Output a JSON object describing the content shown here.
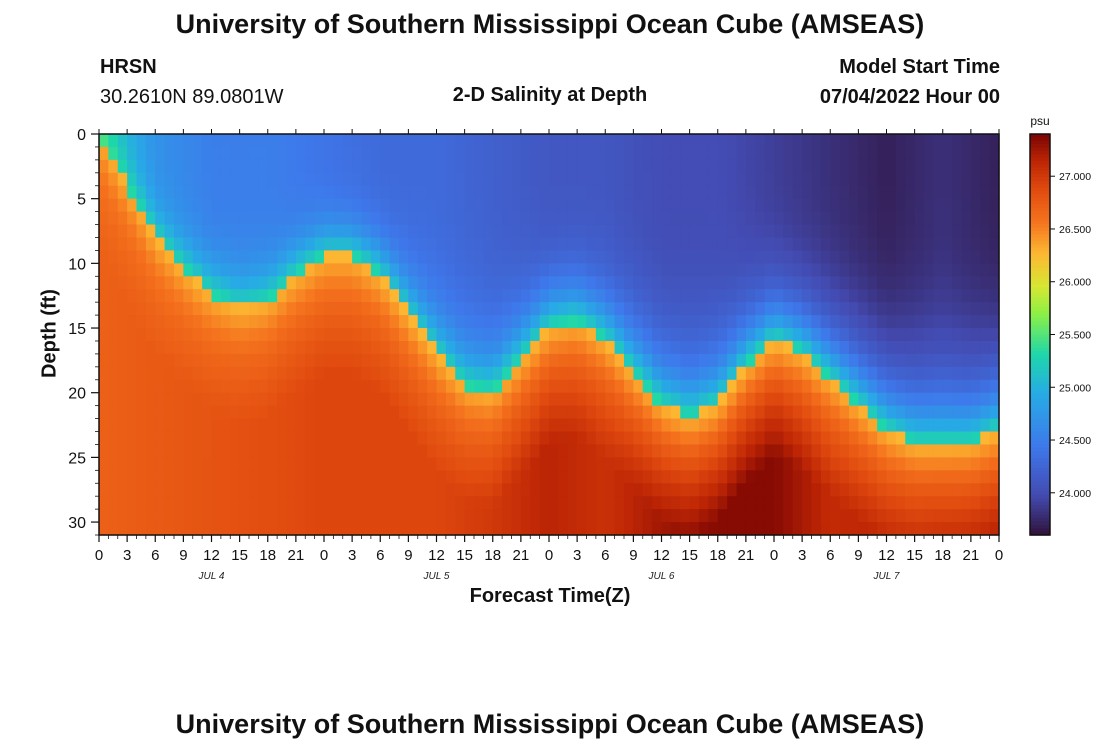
{
  "header": {
    "title": "University of Southern Mississippi Ocean Cube (AMSEAS)",
    "station": "HRSN",
    "coords": "30.2610N  89.0801W",
    "plot_title": "2-D Salinity at Depth",
    "model_start_label": "Model Start Time",
    "model_start_value": "07/04/2022 Hour 00"
  },
  "footer": {
    "title": "University of Southern Mississippi Ocean Cube (AMSEAS)"
  },
  "chart_data": {
    "type": "heatmap",
    "title": "2-D Salinity at Depth",
    "xlabel": "Forecast Time(Z)",
    "ylabel": "Depth (ft)",
    "x_unit": "hours from model start",
    "xlim": [
      0,
      96
    ],
    "ylim": [
      31,
      0
    ],
    "x_ticks": [
      0,
      3,
      6,
      9,
      12,
      15,
      18,
      21,
      24,
      27,
      30,
      33,
      36,
      39,
      42,
      45,
      48,
      51,
      54,
      57,
      60,
      63,
      66,
      69,
      72,
      75,
      78,
      81,
      84,
      87,
      90,
      93,
      96
    ],
    "x_tick_labels": [
      "0",
      "3",
      "6",
      "9",
      "12",
      "15",
      "18",
      "21",
      "0",
      "3",
      "6",
      "9",
      "12",
      "15",
      "18",
      "21",
      "0",
      "3",
      "6",
      "9",
      "12",
      "15",
      "18",
      "21",
      "0",
      "3",
      "6",
      "9",
      "12",
      "15",
      "18",
      "21",
      "0"
    ],
    "y_ticks": [
      0,
      5,
      10,
      15,
      20,
      25,
      30
    ],
    "y_tick_labels": [
      "0",
      "5",
      "10",
      "15",
      "20",
      "25",
      "30"
    ],
    "date_labels": [
      {
        "hour": 12,
        "text": "JUL 4"
      },
      {
        "hour": 36,
        "text": "JUL 5"
      },
      {
        "hour": 60,
        "text": "JUL 6"
      },
      {
        "hour": 84,
        "text": "JUL 7"
      }
    ],
    "colorbar": {
      "unit": "psu",
      "min": 23.6,
      "max": 27.4,
      "ticks": [
        24.0,
        24.5,
        25.0,
        25.5,
        26.0,
        26.5,
        27.0
      ],
      "tick_labels": [
        "24.000",
        "24.500",
        "25.000",
        "25.500",
        "26.000",
        "26.500",
        "27.000"
      ]
    },
    "series": [
      {
        "name": "halocline_depth_ft",
        "x": [
          0,
          3,
          6,
          9,
          12,
          15,
          18,
          21,
          24,
          27,
          30,
          33,
          36,
          39,
          42,
          45,
          48,
          51,
          54,
          57,
          60,
          63,
          66,
          69,
          72,
          75,
          78,
          81,
          84,
          87,
          90,
          93,
          96
        ],
        "y": [
          0,
          4,
          8,
          10.5,
          12.5,
          13.5,
          13,
          11,
          9.5,
          9.5,
          11,
          14,
          17,
          19.5,
          20,
          17.5,
          15,
          14.5,
          16,
          18.5,
          21,
          22,
          21,
          18,
          16,
          17,
          19,
          21,
          23,
          24,
          24,
          24,
          23
        ]
      },
      {
        "name": "surface_salinity_psu",
        "x": [
          0,
          6,
          12,
          18,
          24,
          30,
          36,
          42,
          48,
          54,
          60,
          66,
          72,
          78,
          84,
          90,
          96
        ],
        "y": [
          25.3,
          24.7,
          24.5,
          24.5,
          24.4,
          24.3,
          24.3,
          24.2,
          24.1,
          24.1,
          24.0,
          24.0,
          23.9,
          23.8,
          23.7,
          23.8,
          23.7
        ]
      },
      {
        "name": "bottom_salinity_psu",
        "x": [
          0,
          12,
          24,
          36,
          42,
          48,
          54,
          60,
          66,
          72,
          78,
          84,
          90,
          96
        ],
        "y": [
          26.7,
          26.8,
          26.9,
          26.9,
          27.0,
          27.15,
          27.05,
          27.25,
          27.35,
          27.35,
          27.1,
          27.15,
          27.2,
          27.25
        ]
      }
    ]
  }
}
